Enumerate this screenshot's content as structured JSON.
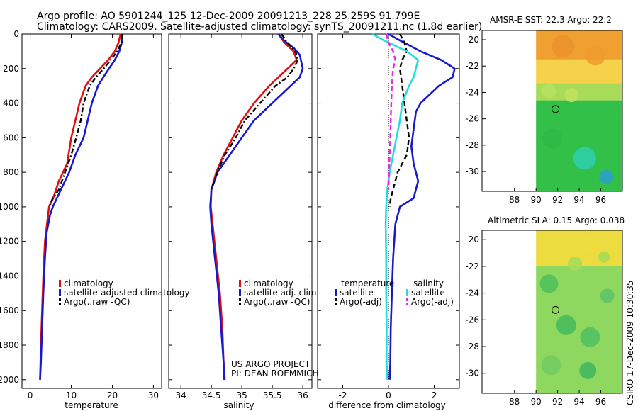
{
  "header": {
    "line1": "Argo profile: AO 5901244_125 12-Dec-2009 20091213_228 25.259S 91.799E",
    "line2": "Climatology: CARS2009. Satellite-adjusted climatology: synTS_20091211.nc (1.8d earlier)"
  },
  "side_text": "CSIRO 17-Dec-2009 10:30:35",
  "credits": {
    "line1": "US ARGO PROJECT",
    "line2": "PI: DEAN ROEMMICH"
  },
  "colors": {
    "climatology": "#dd1111",
    "satellite": "#1818cc",
    "argo": "#000000",
    "sat_diff": "#22dddd",
    "argo_sal_diff": "#ee22ee"
  },
  "chart_data": [
    {
      "type": "line",
      "name": "temperature",
      "xlabel": "temperature",
      "xlim": [
        -2,
        32
      ],
      "ylim": [
        2050,
        0
      ],
      "xticks": [
        0,
        10,
        20,
        30
      ],
      "yticks": [
        0,
        200,
        400,
        600,
        800,
        1000,
        1200,
        1400,
        1600,
        1800,
        2000
      ],
      "legend": [
        "climatology",
        "satellite-adjusted climatology",
        "Argo(..raw -QC)"
      ],
      "series": [
        {
          "name": "climatology",
          "style": "solid",
          "color": "#dd1111",
          "x": [
            22.0,
            21.5,
            20.6,
            19.0,
            17.0,
            15.0,
            13.5,
            12.0,
            11.0,
            10.0,
            9.0,
            7.0,
            5.6,
            4.6,
            4.1,
            3.6,
            3.2,
            2.9,
            2.6,
            2.4
          ],
          "y": [
            0,
            50,
            100,
            150,
            200,
            250,
            300,
            400,
            500,
            600,
            750,
            850,
            950,
            1000,
            1100,
            1200,
            1400,
            1600,
            1800,
            2000
          ]
        },
        {
          "name": "satellite-adjusted climatology",
          "style": "solid",
          "color": "#1818cc",
          "x": [
            22.5,
            22.3,
            21.7,
            20.6,
            19.2,
            17.8,
            16.5,
            15.0,
            14.0,
            13.0,
            11.0,
            9.5,
            7.5,
            5.5,
            4.8,
            4.0,
            3.6,
            3.2,
            2.9,
            2.6,
            2.4
          ],
          "y": [
            0,
            50,
            100,
            150,
            200,
            250,
            300,
            400,
            500,
            600,
            700,
            800,
            900,
            1000,
            1050,
            1150,
            1300,
            1500,
            1700,
            1900,
            2000
          ]
        },
        {
          "name": "Argo(..raw -QC)",
          "style": "dashdot",
          "color": "#000000",
          "x": [
            22.4,
            22.2,
            21.2,
            19.6,
            17.9,
            16.0,
            14.5,
            13.0,
            12.3,
            11.2,
            10.0,
            8.5,
            7.0,
            5.5,
            4.6
          ],
          "y": [
            0,
            50,
            100,
            150,
            200,
            250,
            300,
            400,
            500,
            600,
            700,
            800,
            900,
            950,
            1000
          ]
        }
      ]
    },
    {
      "type": "line",
      "name": "salinity",
      "xlabel": "salinity",
      "xlim": [
        33.8,
        36.15
      ],
      "ylim": [
        2050,
        0
      ],
      "xticks": [
        34,
        34.5,
        35,
        35.5,
        36
      ],
      "legend": [
        "climatology",
        "satellite adj. clim.",
        "Argo(..raw -QC)"
      ],
      "series": [
        {
          "name": "climatology",
          "style": "solid",
          "color": "#dd1111",
          "x": [
            35.6,
            35.7,
            35.85,
            35.9,
            35.75,
            35.6,
            35.45,
            35.2,
            35.0,
            34.85,
            34.7,
            34.58,
            34.5,
            34.49,
            34.52,
            34.58,
            34.64,
            34.68,
            34.7,
            34.72
          ],
          "y": [
            0,
            50,
            100,
            150,
            200,
            250,
            300,
            400,
            500,
            600,
            700,
            800,
            900,
            1000,
            1100,
            1300,
            1500,
            1700,
            1900,
            2000
          ]
        },
        {
          "name": "satellite adj. clim.",
          "style": "solid",
          "color": "#1818cc",
          "x": [
            35.6,
            35.7,
            35.85,
            35.95,
            36.0,
            35.95,
            35.8,
            35.5,
            35.2,
            35.0,
            34.8,
            34.6,
            34.5,
            34.48,
            34.5,
            34.56,
            34.62,
            34.66,
            34.7,
            34.71
          ],
          "y": [
            0,
            40,
            80,
            120,
            200,
            250,
            300,
            400,
            500,
            600,
            700,
            800,
            900,
            1000,
            1100,
            1300,
            1500,
            1700,
            1900,
            2000
          ]
        },
        {
          "name": "Argo(..raw -QC)",
          "style": "dashdot",
          "color": "#000000",
          "x": [
            35.65,
            35.75,
            35.88,
            35.92,
            35.85,
            35.75,
            35.55,
            35.3,
            35.05,
            34.9,
            34.72,
            34.6,
            34.5
          ],
          "y": [
            0,
            50,
            100,
            150,
            200,
            250,
            300,
            400,
            500,
            600,
            700,
            800,
            900
          ]
        }
      ]
    },
    {
      "type": "line",
      "name": "difference",
      "xlabel": "difference from climatology",
      "xlim": [
        -3.1,
        3.1
      ],
      "ylim": [
        2050,
        0
      ],
      "xticks": [
        -2,
        0,
        2
      ],
      "zero_line": true,
      "legend_headers": [
        "temperature",
        "salinity"
      ],
      "legend": [
        "satellite",
        "Argo(-adj)",
        "satellite",
        "Argo(-adj)"
      ],
      "series": [
        {
          "name": "temperature satellite",
          "style": "solid",
          "color": "#1818cc",
          "x": [
            0.0,
            0.4,
            1.4,
            2.3,
            2.9,
            2.8,
            2.2,
            1.4,
            1.2,
            1.1,
            1.0,
            1.1,
            1.3,
            1.1,
            0.5,
            0.3,
            0.2,
            0.15,
            0.1,
            0.08,
            0.05
          ],
          "y": [
            0,
            30,
            100,
            150,
            200,
            250,
            300,
            400,
            450,
            550,
            650,
            750,
            850,
            950,
            1000,
            1100,
            1300,
            1500,
            1700,
            1900,
            2000
          ]
        },
        {
          "name": "temperature Argo(-adj)",
          "style": "dashed",
          "color": "#000000",
          "x": [
            0.5,
            0.7,
            0.8,
            0.6,
            0.5,
            0.6,
            0.7,
            0.8,
            0.9,
            0.8,
            0.4,
            0.2,
            0.1,
            0.05
          ],
          "y": [
            0,
            50,
            100,
            150,
            200,
            300,
            400,
            500,
            600,
            700,
            800,
            900,
            950,
            1000
          ]
        },
        {
          "name": "salinity satellite",
          "style": "solid",
          "color": "#22dddd",
          "x": [
            -0.7,
            -0.3,
            0.8,
            1.3,
            1.2,
            1.1,
            0.9,
            0.6,
            0.5,
            0.35,
            0.2,
            0.05,
            -0.05,
            -0.1,
            -0.12,
            -0.1,
            -0.1,
            -0.08,
            -0.08,
            -0.05
          ],
          "y": [
            0,
            30,
            100,
            150,
            200,
            250,
            300,
            400,
            500,
            600,
            700,
            800,
            900,
            1000,
            1100,
            1300,
            1500,
            1700,
            1900,
            2000
          ]
        },
        {
          "name": "salinity Argo(-adj)",
          "style": "dashed",
          "color": "#ee22ee",
          "x": [
            -0.1,
            0.0,
            0.2,
            0.3,
            0.2,
            0.15,
            0.12,
            0.1,
            0.08,
            0.05,
            0.02,
            0.0
          ],
          "y": [
            0,
            50,
            100,
            150,
            200,
            300,
            400,
            500,
            600,
            700,
            800,
            900
          ]
        }
      ]
    },
    {
      "type": "heatmap",
      "name": "sst",
      "title": "AMSR-E SST: 22.3 Argo: 22.2",
      "xlim": [
        85,
        98
      ],
      "ylim": [
        -31.5,
        -19.3
      ],
      "xticks": [
        88,
        90,
        92,
        94,
        96
      ],
      "yticks": [
        -20,
        -22,
        -24,
        -26,
        -28,
        -30
      ],
      "data_x_range": [
        90,
        98
      ],
      "argo_position": [
        91.8,
        -25.26
      ],
      "color_bands": [
        {
          "to_lat": -21.5,
          "color": "#f0a030"
        },
        {
          "to_lat": -23.3,
          "color": "#f6d24a"
        },
        {
          "to_lat": -24.6,
          "color": "#a8dc58"
        },
        {
          "to_lat": -31.5,
          "color": "#33c048"
        }
      ]
    },
    {
      "type": "heatmap",
      "name": "sla",
      "title": "Altimetric SLA: 0.15 Argo: 0.038",
      "xlim": [
        85,
        98
      ],
      "ylim": [
        -31.5,
        -19.3
      ],
      "xticks": [
        88,
        90,
        92,
        94,
        96
      ],
      "yticks": [
        -20,
        -22,
        -24,
        -26,
        -28,
        -30
      ],
      "data_x_range": [
        90,
        98
      ],
      "argo_position": [
        91.8,
        -25.26
      ],
      "color_bands": [
        {
          "to_lat": -22.0,
          "color": "#ecdc40"
        },
        {
          "to_lat": -31.5,
          "color": "#8ed860"
        }
      ]
    }
  ]
}
